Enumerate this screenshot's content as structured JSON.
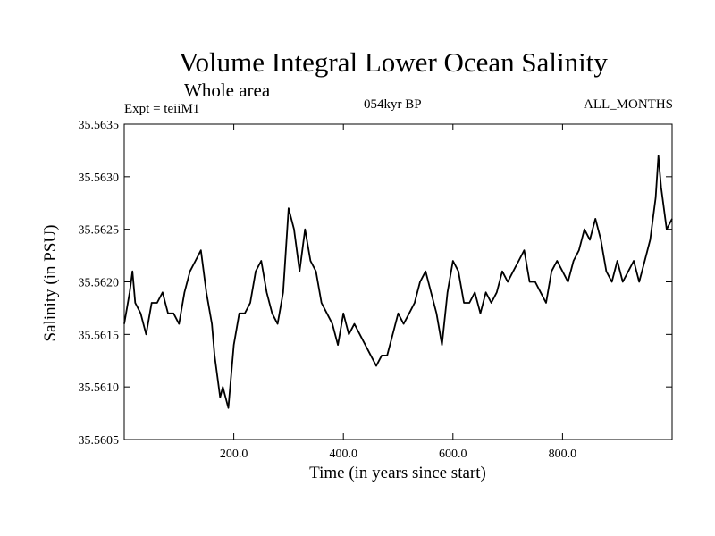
{
  "chart_data": {
    "type": "line",
    "title": "Volume Integral Lower Ocean Salinity",
    "subtitle": "Whole area",
    "left_label": "Expt = teiiM1",
    "center_label": "054kyr BP",
    "right_label": "ALL_MONTHS",
    "xlabel": "Time (in years since start)",
    "ylabel": "Salinity (in PSU)",
    "xlim": [
      0,
      1000
    ],
    "ylim": [
      35.5605,
      35.5635
    ],
    "x_ticks": [
      200,
      400,
      600,
      800
    ],
    "x_tick_labels": [
      "200.0",
      "400.0",
      "600.0",
      "800.0"
    ],
    "y_ticks": [
      35.5605,
      35.561,
      35.5615,
      35.562,
      35.5625,
      35.563,
      35.5635
    ],
    "y_tick_labels": [
      "35.5605",
      "35.5610",
      "35.5615",
      "35.5620",
      "35.5625",
      "35.5630",
      "35.5635"
    ],
    "grid": false,
    "color": "#000000",
    "x": [
      0,
      10,
      15,
      20,
      30,
      40,
      50,
      60,
      70,
      80,
      90,
      100,
      110,
      120,
      130,
      140,
      150,
      160,
      165,
      170,
      175,
      180,
      190,
      200,
      210,
      220,
      230,
      240,
      250,
      260,
      270,
      280,
      290,
      300,
      310,
      320,
      330,
      340,
      350,
      360,
      370,
      380,
      390,
      400,
      410,
      420,
      430,
      440,
      450,
      460,
      470,
      480,
      490,
      500,
      510,
      520,
      530,
      540,
      550,
      560,
      570,
      580,
      590,
      600,
      610,
      620,
      630,
      640,
      650,
      660,
      670,
      680,
      690,
      700,
      710,
      720,
      730,
      740,
      750,
      760,
      770,
      780,
      790,
      800,
      810,
      820,
      830,
      840,
      850,
      860,
      870,
      880,
      890,
      900,
      910,
      920,
      930,
      940,
      950,
      960,
      970,
      975,
      980,
      990,
      1000
    ],
    "y": [
      35.5616,
      35.5619,
      35.5621,
      35.5618,
      35.5617,
      35.5615,
      35.5618,
      35.5618,
      35.5619,
      35.5617,
      35.5617,
      35.5616,
      35.5619,
      35.5621,
      35.5622,
      35.5623,
      35.5619,
      35.5616,
      35.5613,
      35.5611,
      35.5609,
      35.561,
      35.5608,
      35.5614,
      35.5617,
      35.5617,
      35.5618,
      35.5621,
      35.5622,
      35.5619,
      35.5617,
      35.5616,
      35.5619,
      35.5627,
      35.5625,
      35.5621,
      35.5625,
      35.5622,
      35.5621,
      35.5618,
      35.5617,
      35.5616,
      35.5614,
      35.5617,
      35.5615,
      35.5616,
      35.5615,
      35.5614,
      35.5613,
      35.5612,
      35.5613,
      35.5613,
      35.5615,
      35.5617,
      35.5616,
      35.5617,
      35.5618,
      35.562,
      35.5621,
      35.5619,
      35.5617,
      35.5614,
      35.5619,
      35.5622,
      35.5621,
      35.5618,
      35.5618,
      35.5619,
      35.5617,
      35.5619,
      35.5618,
      35.5619,
      35.5621,
      35.562,
      35.5621,
      35.5622,
      35.5623,
      35.562,
      35.562,
      35.5619,
      35.5618,
      35.5621,
      35.5622,
      35.5621,
      35.562,
      35.5622,
      35.5623,
      35.5625,
      35.5624,
      35.5626,
      35.5624,
      35.5621,
      35.562,
      35.5622,
      35.562,
      35.5621,
      35.5622,
      35.562,
      35.5622,
      35.5624,
      35.5628,
      35.5632,
      35.5629,
      35.5625,
      35.5626
    ]
  }
}
